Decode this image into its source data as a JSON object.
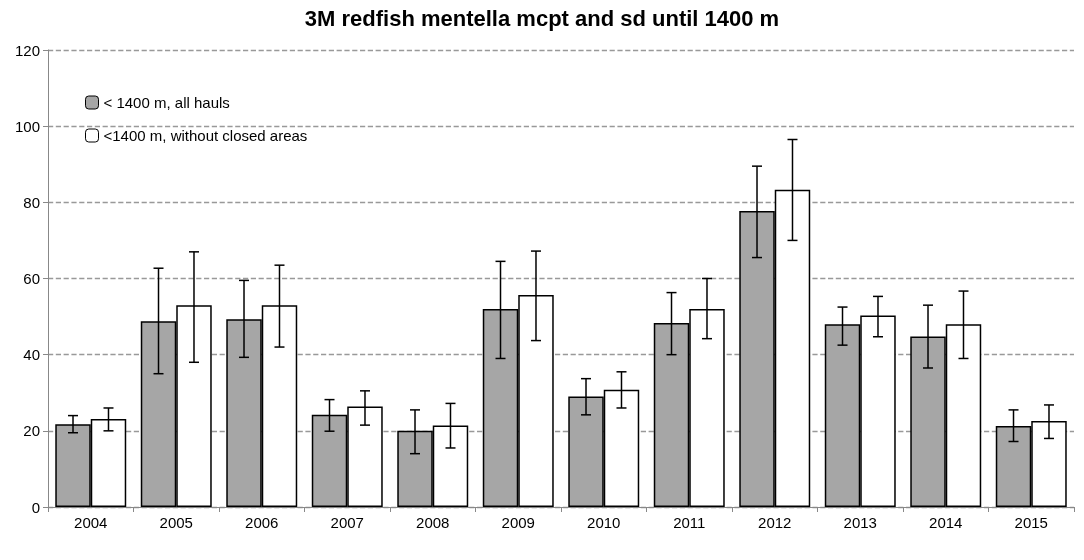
{
  "chart_data": {
    "type": "bar",
    "title": "3M redfish mentella mcpt and sd until 1400 m",
    "categories": [
      "2004",
      "2005",
      "2006",
      "2007",
      "2008",
      "2009",
      "2010",
      "2011",
      "2012",
      "2013",
      "2014",
      "2015"
    ],
    "series": [
      {
        "name": "< 1400 m, all hauls",
        "color": "#a6a6a6",
        "values": [
          21.7,
          48.8,
          49.3,
          24.2,
          20,
          52,
          29,
          48.3,
          77.7,
          48,
          44.8,
          21.3
        ],
        "errors": [
          [
            19.5,
            24
          ],
          [
            35,
            62.7
          ],
          [
            39.3,
            59.5
          ],
          [
            19.9,
            28.2
          ],
          [
            14,
            25.5
          ],
          [
            39,
            64.5
          ],
          [
            24.2,
            33.7
          ],
          [
            40,
            56.3
          ],
          [
            65.5,
            89.5
          ],
          [
            42.5,
            52.5
          ],
          [
            36.5,
            53
          ],
          [
            17.2,
            25.5
          ]
        ]
      },
      {
        "name": "<1400 m, without closed areas",
        "color": "#ffffff",
        "values": [
          23.1,
          53,
          53,
          26.4,
          21.4,
          55.7,
          30.8,
          52,
          83.3,
          50.3,
          48,
          22.6
        ],
        "errors": [
          [
            20,
            26
          ],
          [
            38,
            67
          ],
          [
            42,
            63.5
          ],
          [
            21.5,
            30.5
          ],
          [
            15.5,
            27.2
          ],
          [
            43.7,
            67.2
          ],
          [
            26,
            35.5
          ],
          [
            44.2,
            60
          ],
          [
            70,
            96.5
          ],
          [
            44.7,
            55.3
          ],
          [
            39,
            56.7
          ],
          [
            18,
            26.8
          ]
        ]
      }
    ],
    "ylim": [
      0,
      120
    ],
    "yticks": [
      0,
      20,
      40,
      60,
      80,
      100,
      120
    ],
    "grid": "y",
    "legend": "top left"
  }
}
